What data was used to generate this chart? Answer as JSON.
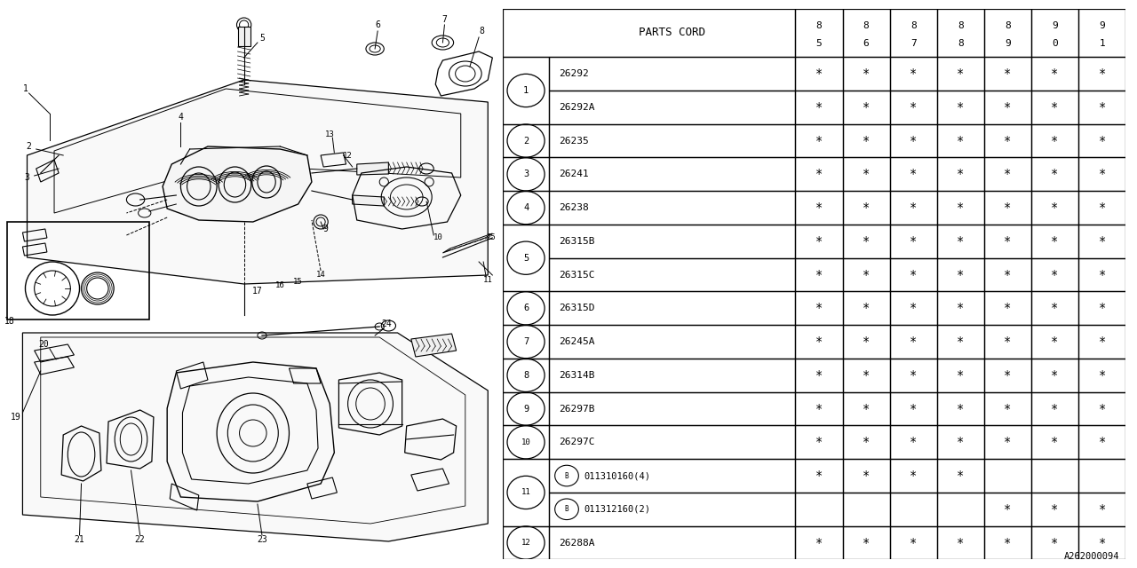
{
  "bg_color": "#ffffff",
  "col_header": "PARTS CORD",
  "year_cols": [
    "8\n5",
    "8\n6",
    "8\n7",
    "8\n8",
    "8\n9",
    "9\n0",
    "9\n1"
  ],
  "rows": [
    {
      "num": "1",
      "code": "26292",
      "stars": [
        1,
        1,
        1,
        1,
        1,
        1,
        1
      ],
      "group_start": true
    },
    {
      "num": "",
      "code": "26292A",
      "stars": [
        1,
        1,
        1,
        1,
        1,
        1,
        1
      ],
      "group_start": false
    },
    {
      "num": "2",
      "code": "26235",
      "stars": [
        1,
        1,
        1,
        1,
        1,
        1,
        1
      ],
      "group_start": true
    },
    {
      "num": "3",
      "code": "26241",
      "stars": [
        1,
        1,
        1,
        1,
        1,
        1,
        1
      ],
      "group_start": true
    },
    {
      "num": "4",
      "code": "26238",
      "stars": [
        1,
        1,
        1,
        1,
        1,
        1,
        1
      ],
      "group_start": true
    },
    {
      "num": "5",
      "code": "26315B",
      "stars": [
        1,
        1,
        1,
        1,
        1,
        1,
        1
      ],
      "group_start": true
    },
    {
      "num": "",
      "code": "26315C",
      "stars": [
        1,
        1,
        1,
        1,
        1,
        1,
        1
      ],
      "group_start": false
    },
    {
      "num": "6",
      "code": "26315D",
      "stars": [
        1,
        1,
        1,
        1,
        1,
        1,
        1
      ],
      "group_start": true
    },
    {
      "num": "7",
      "code": "26245A",
      "stars": [
        1,
        1,
        1,
        1,
        1,
        1,
        1
      ],
      "group_start": true
    },
    {
      "num": "8",
      "code": "26314B",
      "stars": [
        1,
        1,
        1,
        1,
        1,
        1,
        1
      ],
      "group_start": true
    },
    {
      "num": "9",
      "code": "26297B",
      "stars": [
        1,
        1,
        1,
        1,
        1,
        1,
        1
      ],
      "group_start": true
    },
    {
      "num": "10",
      "code": "26297C",
      "stars": [
        1,
        1,
        1,
        1,
        1,
        1,
        1
      ],
      "group_start": true
    },
    {
      "num": "11",
      "code": "B011310160(4)",
      "stars": [
        1,
        1,
        1,
        1,
        0,
        0,
        0
      ],
      "group_start": true
    },
    {
      "num": "",
      "code": "B011312160(2)",
      "stars": [
        0,
        0,
        0,
        0,
        1,
        1,
        1
      ],
      "group_start": false
    },
    {
      "num": "12",
      "code": "26288A",
      "stars": [
        1,
        1,
        1,
        1,
        1,
        1,
        1
      ],
      "group_start": true
    }
  ],
  "watermark": "A262000094",
  "line_color": "#000000",
  "text_color": "#000000"
}
